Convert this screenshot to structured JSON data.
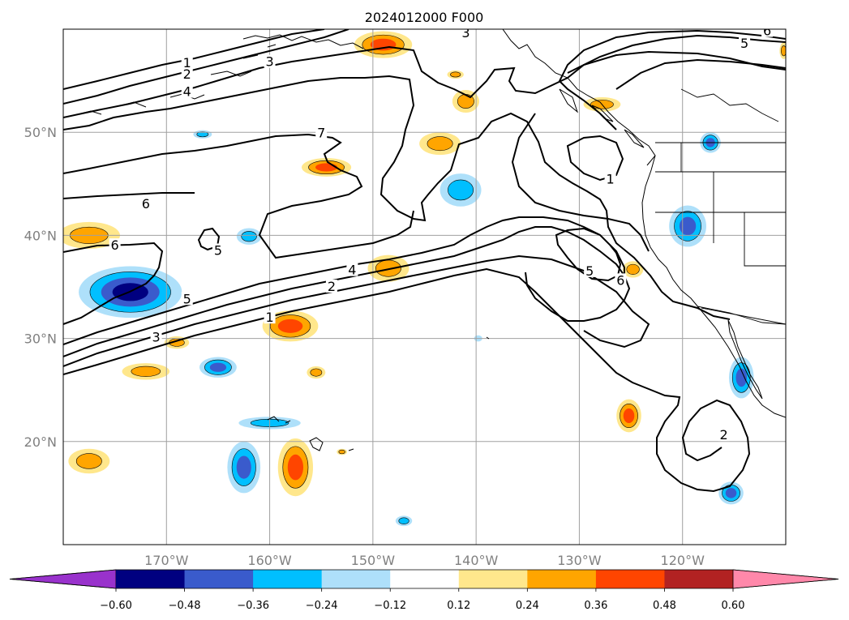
{
  "title": "2024012000 F000",
  "colors": {
    "neg_060": "#9932CC",
    "neg_048": "#000080",
    "neg_036": "#3A5BCC",
    "neg_024": "#00BFFF",
    "neg_012": "#AEE0FA",
    "neutral": "#FFFFFF",
    "pos_012": "#FFE78C",
    "pos_024": "#FFA500",
    "pos_036": "#FF4500",
    "pos_048": "#B22222",
    "pos_060": "#FF88AA",
    "grid": "#A0A0A0",
    "contour": "#000000"
  },
  "map": {
    "lon_min": -180,
    "lon_max": -110,
    "lat_min": 10,
    "lat_max": 60,
    "lon_ticks": [
      {
        "value": -170,
        "label": "170°W"
      },
      {
        "value": -160,
        "label": "160°W"
      },
      {
        "value": -150,
        "label": "150°W"
      },
      {
        "value": -140,
        "label": "140°W"
      },
      {
        "value": -130,
        "label": "130°W"
      },
      {
        "value": -120,
        "label": "120°W"
      }
    ],
    "lat_ticks": [
      {
        "value": 20,
        "label": "20°N"
      },
      {
        "value": 30,
        "label": "30°N"
      },
      {
        "value": 40,
        "label": "40°N"
      },
      {
        "value": 50,
        "label": "50°N"
      }
    ]
  },
  "contour_labels": [
    {
      "text": "1",
      "lon": -168.0,
      "lat": 56.7
    },
    {
      "text": "2",
      "lon": -168.0,
      "lat": 55.6
    },
    {
      "text": "3",
      "lon": -160.0,
      "lat": 56.8
    },
    {
      "text": "3",
      "lon": -141.0,
      "lat": 59.6
    },
    {
      "text": "4",
      "lon": -168.0,
      "lat": 53.9
    },
    {
      "text": "5",
      "lon": -114.0,
      "lat": 58.6
    },
    {
      "text": "6",
      "lon": -111.8,
      "lat": 59.8
    },
    {
      "text": "7",
      "lon": -155.0,
      "lat": 49.9
    },
    {
      "text": "6",
      "lon": -172.0,
      "lat": 43.0
    },
    {
      "text": "6",
      "lon": -175.0,
      "lat": 39.0
    },
    {
      "text": "5",
      "lon": -165.0,
      "lat": 38.5
    },
    {
      "text": "5",
      "lon": -168.0,
      "lat": 33.8
    },
    {
      "text": "4",
      "lon": -152.0,
      "lat": 36.6
    },
    {
      "text": "2",
      "lon": -154.0,
      "lat": 35.0
    },
    {
      "text": "3",
      "lon": -171.0,
      "lat": 30.1
    },
    {
      "text": "1",
      "lon": -160.0,
      "lat": 32.0
    },
    {
      "text": "1",
      "lon": -127.0,
      "lat": 45.4
    },
    {
      "text": "5",
      "lon": -129.0,
      "lat": 36.5
    },
    {
      "text": "6",
      "lon": -126.0,
      "lat": 35.6
    },
    {
      "text": "2",
      "lon": -116.0,
      "lat": 20.6
    }
  ],
  "anomaly_blobs": [
    {
      "level": 0.36,
      "lon": -149,
      "lat": 58.5,
      "rx": 2.8,
      "ry": 1.3
    },
    {
      "level": 0.24,
      "lon": -141,
      "lat": 53.0,
      "rx": 1.3,
      "ry": 1.1
    },
    {
      "level": 0.24,
      "lon": -142,
      "lat": 55.6,
      "rx": 0.8,
      "ry": 0.4
    },
    {
      "level": 0.24,
      "lon": -143.5,
      "lat": 48.9,
      "rx": 2.0,
      "ry": 1.1
    },
    {
      "level": 0.36,
      "lon": -154.5,
      "lat": 46.6,
      "rx": 2.4,
      "ry": 0.9
    },
    {
      "level": -0.24,
      "lon": -141.5,
      "lat": 44.4,
      "rx": 2.0,
      "ry": 1.6
    },
    {
      "level": -0.24,
      "lon": -166.5,
      "lat": 49.8,
      "rx": 0.9,
      "ry": 0.4
    },
    {
      "level": -0.24,
      "lon": -162,
      "lat": 39.9,
      "rx": 1.2,
      "ry": 0.8
    },
    {
      "level": 0.24,
      "lon": -177.5,
      "lat": 40.0,
      "rx": 3.0,
      "ry": 1.3
    },
    {
      "level": -0.48,
      "lon": -173.5,
      "lat": 34.5,
      "rx": 5.0,
      "ry": 2.5
    },
    {
      "level": 0.24,
      "lon": -148.5,
      "lat": 36.8,
      "rx": 2.0,
      "ry": 1.3
    },
    {
      "level": 0.36,
      "lon": -158,
      "lat": 31.2,
      "rx": 2.7,
      "ry": 1.5
    },
    {
      "level": 0.24,
      "lon": -169,
      "lat": 29.6,
      "rx": 1.2,
      "ry": 0.6
    },
    {
      "level": -0.36,
      "lon": -165,
      "lat": 27.2,
      "rx": 1.8,
      "ry": 1.0
    },
    {
      "level": 0.24,
      "lon": -172,
      "lat": 26.8,
      "rx": 2.3,
      "ry": 0.8
    },
    {
      "level": 0.24,
      "lon": -155.5,
      "lat": 26.7,
      "rx": 0.9,
      "ry": 0.6
    },
    {
      "level": -0.36,
      "lon": -162.5,
      "lat": 17.5,
      "rx": 1.6,
      "ry": 2.5
    },
    {
      "level": 0.36,
      "lon": -157.5,
      "lat": 17.5,
      "rx": 1.7,
      "ry": 2.8
    },
    {
      "level": -0.24,
      "lon": -160,
      "lat": 21.8,
      "rx": 3.0,
      "ry": 0.6
    },
    {
      "level": 0.24,
      "lon": -177.5,
      "lat": 18.1,
      "rx": 2.0,
      "ry": 1.2
    },
    {
      "level": 0.24,
      "lon": -153,
      "lat": 19.0,
      "rx": 0.5,
      "ry": 0.3
    },
    {
      "level": -0.24,
      "lon": -147,
      "lat": 12.3,
      "rx": 0.8,
      "ry": 0.5
    },
    {
      "level": -0.12,
      "lon": -139.8,
      "lat": 30.0,
      "rx": 0.4,
      "ry": 0.3
    },
    {
      "level": 0.36,
      "lon": -125.2,
      "lat": 22.5,
      "rx": 1.2,
      "ry": 1.6
    },
    {
      "level": -0.36,
      "lon": -119.5,
      "lat": 40.9,
      "rx": 1.8,
      "ry": 2.0
    },
    {
      "level": -0.36,
      "lon": -117.3,
      "lat": 49.0,
      "rx": 1.0,
      "ry": 1.0
    },
    {
      "level": 0.24,
      "lon": -124.8,
      "lat": 36.7,
      "rx": 1.0,
      "ry": 0.8
    },
    {
      "level": 0.24,
      "lon": -127.8,
      "lat": 52.7,
      "rx": 1.8,
      "ry": 0.7
    },
    {
      "level": -0.36,
      "lon": -114.3,
      "lat": 26.2,
      "rx": 1.2,
      "ry": 2.0
    },
    {
      "level": -0.36,
      "lon": -115.3,
      "lat": 15.0,
      "rx": 1.2,
      "ry": 1.1
    },
    {
      "level": 0.24,
      "lon": -110.2,
      "lat": 57.9,
      "rx": 0.4,
      "ry": 0.8
    }
  ],
  "colorbar": {
    "levels": [
      "−0.60",
      "−0.48",
      "−0.36",
      "−0.24",
      "−0.12",
      "0.12",
      "0.24",
      "0.36",
      "0.48",
      "0.60"
    ],
    "level_values": [
      -0.6,
      -0.48,
      -0.36,
      -0.24,
      -0.12,
      0.12,
      0.24,
      0.36,
      0.48,
      0.6
    ],
    "extend": "both"
  }
}
